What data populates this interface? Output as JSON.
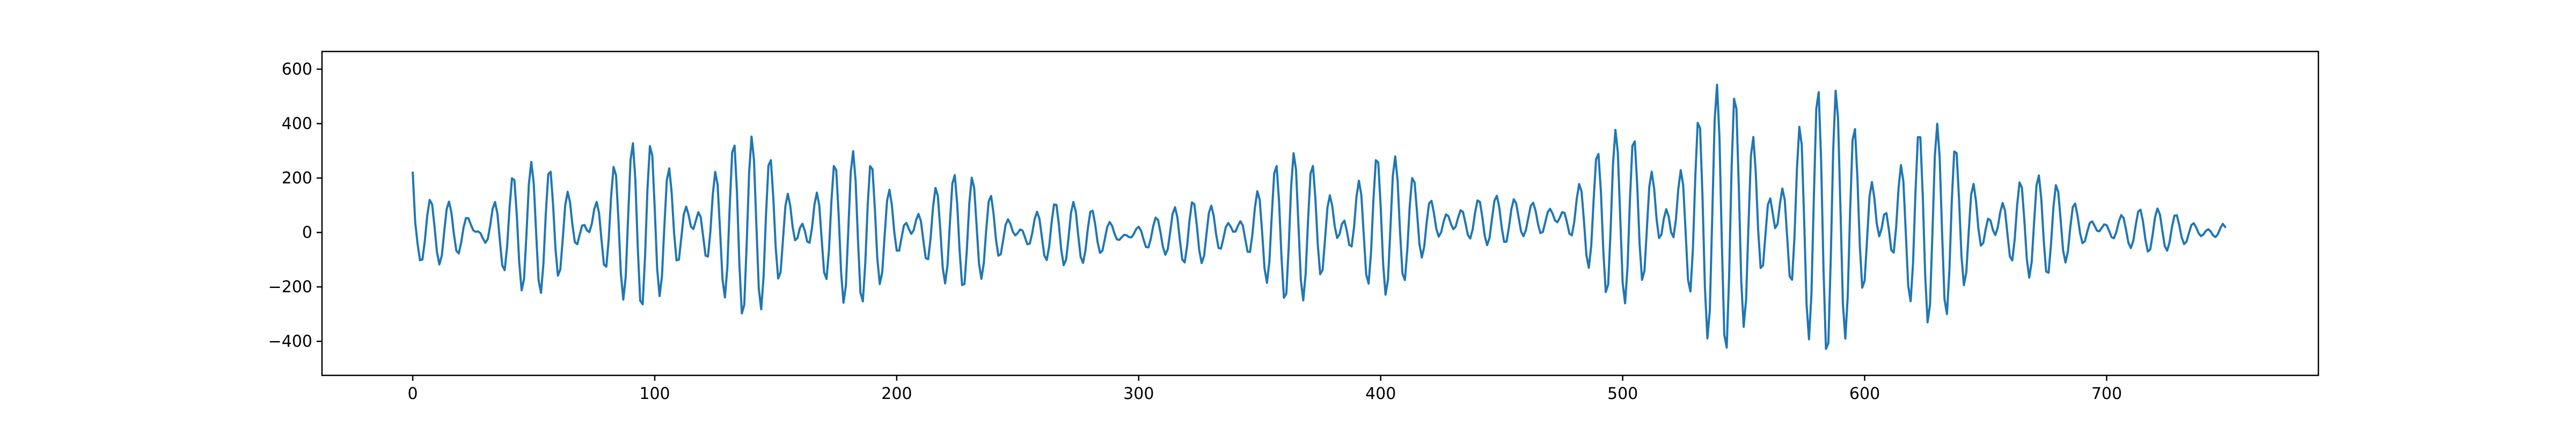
{
  "chart_data": {
    "type": "line",
    "title": "",
    "xlabel": "",
    "ylabel": "",
    "xlim": [
      -37.5,
      787.5
    ],
    "ylim": [
      -525,
      665
    ],
    "xticks": [
      0,
      100,
      200,
      300,
      400,
      500,
      600,
      700
    ],
    "yticks": [
      -400,
      -200,
      0,
      200,
      400,
      600
    ],
    "xtick_labels": [
      "0",
      "100",
      "200",
      "300",
      "400",
      "500",
      "600",
      "700"
    ],
    "ytick_labels": [
      "−400",
      "−200",
      "0",
      "200",
      "400",
      "600"
    ],
    "grid": false,
    "legend": "none",
    "color": "#1f77b4",
    "n_points": 750,
    "x_start": 0,
    "x_step": 1,
    "signal_description": "sum of two near-frequency sinusoids (periods ~7 and ~8.3 samples) under a slowly varying envelope, sampled at integer x",
    "envelope": [
      {
        "x": 0,
        "a": 40,
        "b": 60
      },
      {
        "x": 40,
        "a": 110,
        "b": 120
      },
      {
        "x": 90,
        "a": 160,
        "b": 150
      },
      {
        "x": 135,
        "a": 180,
        "b": 160
      },
      {
        "x": 180,
        "a": 150,
        "b": 140
      },
      {
        "x": 230,
        "a": 110,
        "b": 100
      },
      {
        "x": 270,
        "a": 60,
        "b": 60
      },
      {
        "x": 310,
        "a": 40,
        "b": 40
      },
      {
        "x": 360,
        "a": 140,
        "b": 130
      },
      {
        "x": 390,
        "a": 190,
        "b": 170
      },
      {
        "x": 420,
        "a": 90,
        "b": 60
      },
      {
        "x": 460,
        "a": 40,
        "b": 30
      },
      {
        "x": 500,
        "a": 180,
        "b": 160
      },
      {
        "x": 540,
        "a": 270,
        "b": 230
      },
      {
        "x": 575,
        "a": 280,
        "b": 250
      },
      {
        "x": 620,
        "a": 220,
        "b": 190
      },
      {
        "x": 660,
        "a": 130,
        "b": 110
      },
      {
        "x": 700,
        "a": 50,
        "b": 40
      },
      {
        "x": 749,
        "a": 40,
        "b": 30
      }
    ],
    "periods": [
      7.0,
      8.3
    ],
    "offset_trend": [
      {
        "x": 0,
        "y": 0
      },
      {
        "x": 100,
        "y": 30
      },
      {
        "x": 300,
        "y": -10
      },
      {
        "x": 400,
        "y": 30
      },
      {
        "x": 500,
        "y": 60
      },
      {
        "x": 600,
        "y": 40
      },
      {
        "x": 749,
        "y": 0
      }
    ],
    "first_point": {
      "x": 0,
      "y": 220
    },
    "last_point": {
      "x": 749,
      "y": 20
    },
    "extremes": {
      "max": 610,
      "min": -460
    }
  }
}
